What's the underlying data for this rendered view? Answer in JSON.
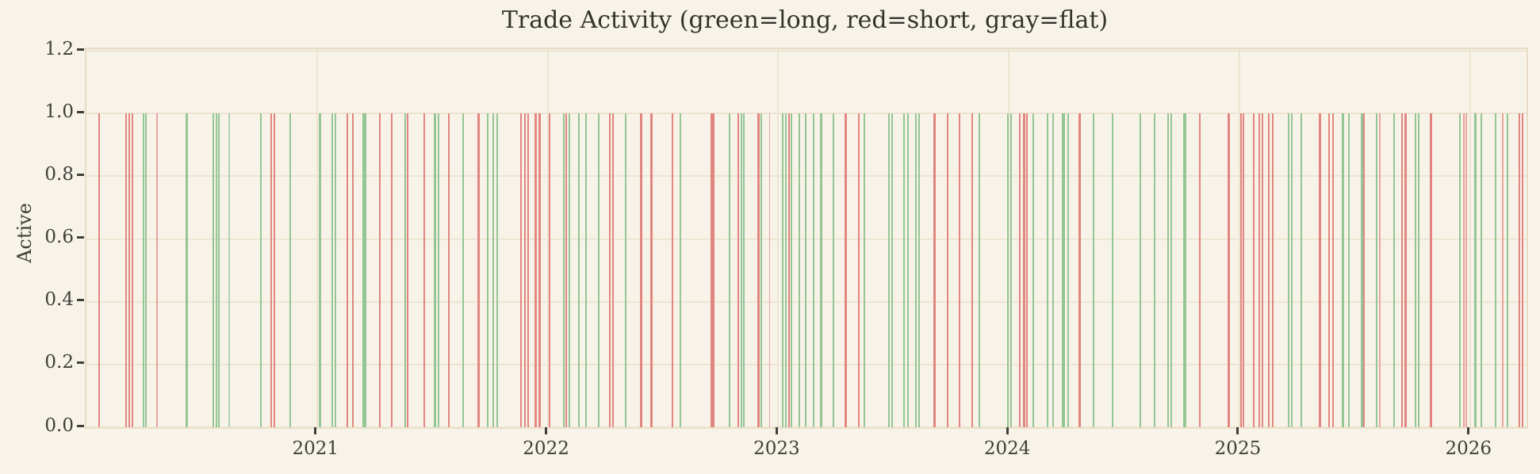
{
  "figure": {
    "title": "Trade Activity (green=long, red=short, gray=flat)",
    "ylabel": "Active"
  },
  "chart_data": {
    "type": "line",
    "subtype": "vertical-event-lines",
    "title": "Trade Activity (green=long, red=short, gray=flat)",
    "xlabel": "",
    "ylabel": "Active",
    "x_tick_labels": [
      "2021",
      "2022",
      "2023",
      "2024",
      "2025",
      "2026"
    ],
    "x_tick_values": [
      2021,
      2022,
      2023,
      2024,
      2025,
      2026
    ],
    "y_tick_labels": [
      "0.0",
      "0.2",
      "0.4",
      "0.6",
      "0.8",
      "1.0",
      "1.2"
    ],
    "y_tick_values": [
      0.0,
      0.2,
      0.4,
      0.6,
      0.8,
      1.0,
      1.2
    ],
    "xlim": [
      2020.0,
      2026.245
    ],
    "ylim": [
      0.0,
      1.2
    ],
    "event_height": 1.0,
    "grid": true,
    "legend_in_title": {
      "long": "green",
      "short": "red",
      "flat": "gray"
    },
    "colors": {
      "long": "#94c594",
      "short": "#e2857f",
      "flat": "#b9b4a6",
      "background": "#f8f3e9",
      "grid": "#ede4d1",
      "spine": "#e6dcc7",
      "tick": "#3f3e39",
      "title": "#33322c"
    },
    "events": [
      [
        2020.055,
        "short",
        2
      ],
      [
        2020.172,
        "short",
        2
      ],
      [
        2020.186,
        "short",
        2
      ],
      [
        2020.199,
        "short",
        2
      ],
      [
        2020.247,
        "long",
        2
      ],
      [
        2020.258,
        "long",
        2
      ],
      [
        2020.306,
        "short",
        1
      ],
      [
        2020.436,
        "long",
        3
      ],
      [
        2020.55,
        "long",
        2
      ],
      [
        2020.564,
        "long",
        2
      ],
      [
        2020.574,
        "long",
        2
      ],
      [
        2020.619,
        "long",
        1
      ],
      [
        2020.756,
        "long",
        2
      ],
      [
        2020.801,
        "short",
        2
      ],
      [
        2020.814,
        "short",
        2
      ],
      [
        2020.883,
        "long",
        2
      ],
      [
        2021.014,
        "long",
        3
      ],
      [
        2021.065,
        "long",
        2
      ],
      [
        2021.079,
        "long",
        2
      ],
      [
        2021.131,
        "short",
        2
      ],
      [
        2021.155,
        "short",
        2
      ],
      [
        2021.206,
        "long",
        4
      ],
      [
        2021.271,
        "short",
        2
      ],
      [
        2021.323,
        "short",
        2
      ],
      [
        2021.381,
        "long",
        2
      ],
      [
        2021.392,
        "short",
        2
      ],
      [
        2021.464,
        "short",
        2
      ],
      [
        2021.512,
        "long",
        3
      ],
      [
        2021.526,
        "long",
        2
      ],
      [
        2021.57,
        "short",
        2
      ],
      [
        2021.632,
        "long",
        2
      ],
      [
        2021.701,
        "short",
        3
      ],
      [
        2021.74,
        "long",
        2
      ],
      [
        2021.763,
        "long",
        2
      ],
      [
        2021.78,
        "long",
        2
      ],
      [
        2021.883,
        "short",
        2
      ],
      [
        2021.9,
        "short",
        2
      ],
      [
        2021.914,
        "short",
        2
      ],
      [
        2021.948,
        "short",
        3
      ],
      [
        2021.966,
        "short",
        3
      ],
      [
        2022.01,
        "short",
        2
      ],
      [
        2022.069,
        "long",
        2
      ],
      [
        2022.082,
        "short",
        2
      ],
      [
        2022.093,
        "long",
        2
      ],
      [
        2022.137,
        "long",
        2
      ],
      [
        2022.165,
        "long",
        2
      ],
      [
        2022.22,
        "long",
        2
      ],
      [
        2022.268,
        "short",
        2
      ],
      [
        2022.282,
        "short",
        2
      ],
      [
        2022.34,
        "long",
        2
      ],
      [
        2022.405,
        "short",
        3
      ],
      [
        2022.45,
        "short",
        3
      ],
      [
        2022.543,
        "short",
        2
      ],
      [
        2022.577,
        "long",
        2
      ],
      [
        2022.715,
        "short",
        4
      ],
      [
        2022.79,
        "long",
        2
      ],
      [
        2022.828,
        "short",
        2
      ],
      [
        2022.842,
        "long",
        2
      ],
      [
        2022.852,
        "long",
        2
      ],
      [
        2022.914,
        "short",
        3
      ],
      [
        2022.928,
        "long",
        2
      ],
      [
        2022.962,
        "short",
        1
      ],
      [
        2023.021,
        "long",
        2
      ],
      [
        2023.034,
        "long",
        2
      ],
      [
        2023.048,
        "short",
        2
      ],
      [
        2023.058,
        "long",
        2
      ],
      [
        2023.093,
        "long",
        2
      ],
      [
        2023.12,
        "long",
        2
      ],
      [
        2023.155,
        "long",
        2
      ],
      [
        2023.186,
        "long",
        3
      ],
      [
        2023.241,
        "long",
        2
      ],
      [
        2023.292,
        "short",
        3
      ],
      [
        2023.351,
        "short",
        2
      ],
      [
        2023.375,
        "long",
        2
      ],
      [
        2023.481,
        "long",
        2
      ],
      [
        2023.495,
        "long",
        2
      ],
      [
        2023.546,
        "long",
        2
      ],
      [
        2023.564,
        "long",
        2
      ],
      [
        2023.598,
        "long",
        2
      ],
      [
        2023.612,
        "long",
        2
      ],
      [
        2023.677,
        "short",
        3
      ],
      [
        2023.736,
        "short",
        2
      ],
      [
        2023.787,
        "short",
        2
      ],
      [
        2023.842,
        "short",
        2
      ],
      [
        2023.873,
        "long",
        2
      ],
      [
        2023.997,
        "long",
        2
      ],
      [
        2024.01,
        "long",
        2
      ],
      [
        2024.048,
        "short",
        2
      ],
      [
        2024.065,
        "short",
        3
      ],
      [
        2024.079,
        "short",
        2
      ],
      [
        2024.107,
        "long",
        2
      ],
      [
        2024.168,
        "long",
        2
      ],
      [
        2024.192,
        "long",
        2
      ],
      [
        2024.237,
        "long",
        4
      ],
      [
        2024.258,
        "long",
        2
      ],
      [
        2024.306,
        "short",
        3
      ],
      [
        2024.368,
        "long",
        2
      ],
      [
        2024.45,
        "long",
        2
      ],
      [
        2024.57,
        "long",
        2
      ],
      [
        2024.632,
        "long",
        2
      ],
      [
        2024.691,
        "long",
        2
      ],
      [
        2024.704,
        "long",
        2
      ],
      [
        2024.763,
        "long",
        4
      ],
      [
        2024.828,
        "short",
        2
      ],
      [
        2024.955,
        "short",
        3
      ],
      [
        2025.007,
        "short",
        2
      ],
      [
        2025.017,
        "short",
        2
      ],
      [
        2025.062,
        "short",
        2
      ],
      [
        2025.086,
        "short",
        2
      ],
      [
        2025.1,
        "short",
        2
      ],
      [
        2025.127,
        "short",
        2
      ],
      [
        2025.144,
        "short",
        2
      ],
      [
        2025.213,
        "long",
        2
      ],
      [
        2025.227,
        "long",
        2
      ],
      [
        2025.268,
        "long",
        2
      ],
      [
        2025.35,
        "short",
        3
      ],
      [
        2025.388,
        "short",
        2
      ],
      [
        2025.405,
        "short",
        2
      ],
      [
        2025.45,
        "long",
        3
      ],
      [
        2025.474,
        "long",
        2
      ],
      [
        2025.533,
        "long",
        3
      ],
      [
        2025.54,
        "short",
        2
      ],
      [
        2025.595,
        "long",
        2
      ],
      [
        2025.608,
        "short",
        1
      ],
      [
        2025.67,
        "long",
        2
      ],
      [
        2025.704,
        "short",
        2
      ],
      [
        2025.722,
        "short",
        3
      ],
      [
        2025.763,
        "long",
        2
      ],
      [
        2025.777,
        "long",
        2
      ],
      [
        2025.832,
        "short",
        3
      ],
      [
        2025.955,
        "long",
        2
      ],
      [
        2025.973,
        "short",
        1
      ],
      [
        2025.983,
        "short",
        1
      ],
      [
        2026.024,
        "long",
        3
      ],
      [
        2026.048,
        "long",
        2
      ],
      [
        2026.11,
        "long",
        2
      ],
      [
        2026.141,
        "short",
        1
      ],
      [
        2026.162,
        "long",
        2
      ],
      [
        2026.213,
        "short",
        2
      ],
      [
        2026.227,
        "short",
        2
      ]
    ]
  }
}
